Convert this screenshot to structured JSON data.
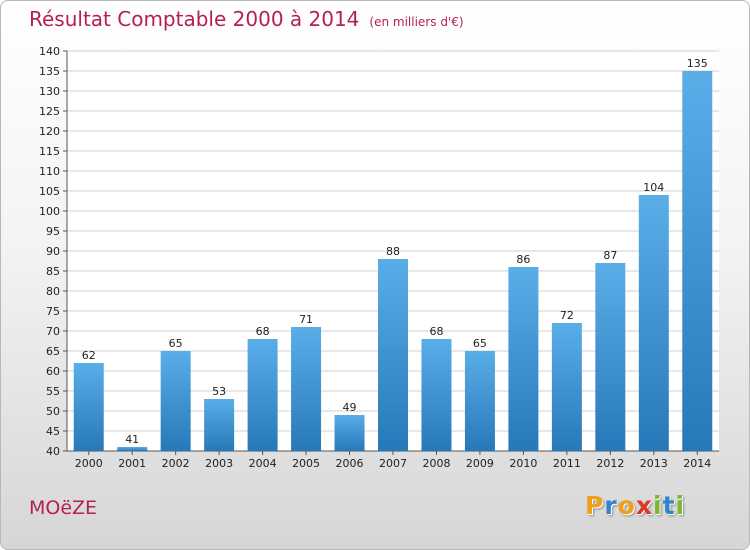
{
  "header": {
    "title": "Résultat Comptable 2000 à 2014",
    "subtitle": "(en milliers d'€)"
  },
  "footer": {
    "city": "MOëZE",
    "brand_letters": [
      {
        "char": "P",
        "color": "#f0a018"
      },
      {
        "char": "r",
        "color": "#2e86c8"
      },
      {
        "char": "o",
        "color": "#f0a018"
      },
      {
        "char": "x",
        "color": "#d83a2a"
      },
      {
        "char": "i",
        "color": "#7cb82f"
      },
      {
        "char": "t",
        "color": "#2e86c8"
      },
      {
        "char": "i",
        "color": "#7cb82f"
      }
    ]
  },
  "chart_data": {
    "type": "bar",
    "title": "Résultat Comptable 2000 à 2014",
    "subtitle": "(en milliers d'€)",
    "categories": [
      "2000",
      "2001",
      "2002",
      "2003",
      "2004",
      "2005",
      "2006",
      "2007",
      "2008",
      "2009",
      "2010",
      "2011",
      "2012",
      "2013",
      "2014"
    ],
    "values": [
      62,
      41,
      65,
      53,
      68,
      71,
      49,
      88,
      68,
      65,
      86,
      72,
      87,
      104,
      135
    ],
    "xlabel": "",
    "ylabel": "",
    "ylim": [
      40,
      140
    ],
    "ytick_step": 5,
    "grid": true,
    "legend": "none",
    "colors": {
      "bar_light": "#5aaee8",
      "bar_dark": "#2778b8",
      "grid": "#d2d2d2",
      "plot_bg": "#ffffff"
    }
  }
}
